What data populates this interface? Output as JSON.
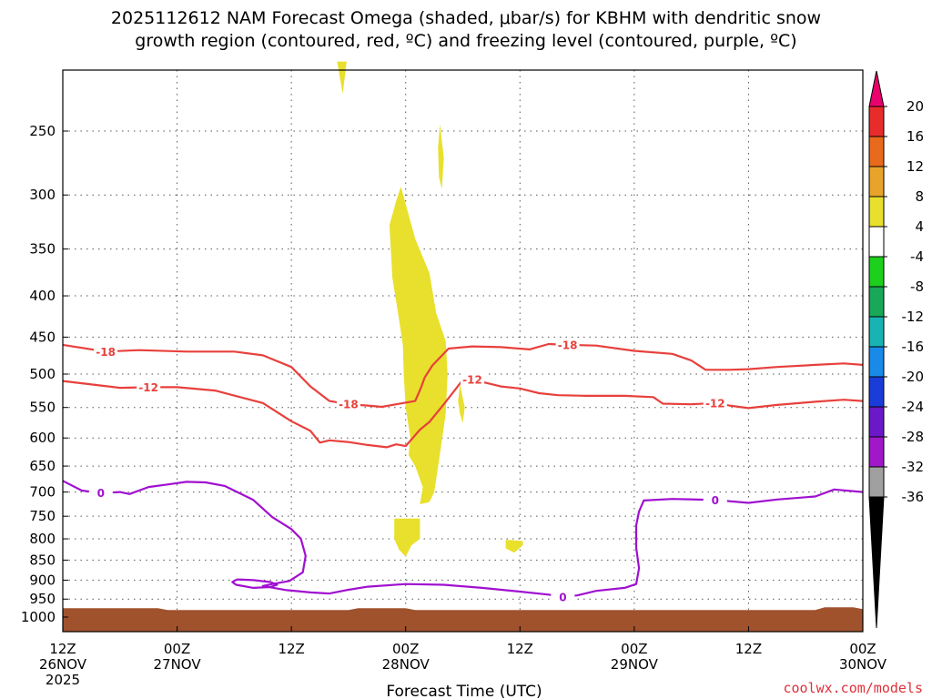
{
  "chart_data": {
    "type": "heatmap",
    "title_line1": "2025112612 NAM Forecast Omega (shaded, μbar/s) for KBHM with dendritic snow",
    "title_line2": "growth region (contoured, red, ºC) and freezing level (contoured, purple, ºC)",
    "xlabel": "Forecast Time (UTC)",
    "credit": "coolwx.com/models",
    "y_axis": {
      "unit": "hPa",
      "ticks": [
        "250",
        "300",
        "350",
        "400",
        "450",
        "500",
        "550",
        "600",
        "650",
        "700",
        "750",
        "800",
        "850",
        "900",
        "950",
        "1000"
      ],
      "range": [
        200,
        1000
      ]
    },
    "x_axis": {
      "range_hours": [
        0,
        84
      ],
      "ticks": [
        {
          "hour": 0,
          "l1": "12Z",
          "l2": "26NOV",
          "l3": "2025"
        },
        {
          "hour": 12,
          "l1": "00Z",
          "l2": "27NOV",
          "l3": ""
        },
        {
          "hour": 24,
          "l1": "12Z",
          "l2": "",
          "l3": ""
        },
        {
          "hour": 36,
          "l1": "00Z",
          "l2": "28NOV",
          "l3": ""
        },
        {
          "hour": 48,
          "l1": "12Z",
          "l2": "",
          "l3": ""
        },
        {
          "hour": 60,
          "l1": "00Z",
          "l2": "29NOV",
          "l3": ""
        },
        {
          "hour": 72,
          "l1": "12Z",
          "l2": "",
          "l3": ""
        },
        {
          "hour": 84,
          "l1": "00Z",
          "l2": "30NOV",
          "l3": ""
        }
      ]
    },
    "colorbar": {
      "labels": [
        "20",
        "16",
        "12",
        "8",
        "4",
        "-4",
        "-8",
        "-12",
        "-16",
        "-20",
        "-24",
        "-28",
        "-32",
        "-36"
      ],
      "colors": [
        "#e8006c",
        "#e82c2c",
        "#e86a1c",
        "#e8a42a",
        "#e8e02c",
        "#ffffff",
        "#1cd01c",
        "#18a858",
        "#18b4b4",
        "#1a8ae8",
        "#1a3cd8",
        "#6a18c8",
        "#a018c8",
        "#a0a0a0",
        "#000000"
      ]
    },
    "contours": [
      {
        "name": "minus18",
        "label": "-18",
        "color": "#e8403c",
        "points": [
          [
            0,
            460
          ],
          [
            4.5,
            469
          ],
          [
            8,
            467
          ],
          [
            13,
            469
          ],
          [
            18,
            469
          ],
          [
            21,
            474
          ],
          [
            24,
            490
          ],
          [
            26,
            518
          ],
          [
            28,
            540
          ],
          [
            30,
            545
          ],
          [
            32,
            547
          ],
          [
            33.5,
            549
          ],
          [
            35,
            545
          ],
          [
            37,
            540
          ],
          [
            37.6,
            520
          ],
          [
            38,
            505
          ],
          [
            38.8,
            488
          ],
          [
            40.5,
            465
          ],
          [
            43,
            462
          ],
          [
            46,
            463
          ],
          [
            49,
            466
          ],
          [
            51,
            459
          ],
          [
            53,
            460
          ],
          [
            56,
            461
          ],
          [
            60,
            468
          ],
          [
            64,
            472
          ],
          [
            66,
            481
          ],
          [
            67.5,
            494
          ],
          [
            70,
            494
          ],
          [
            72,
            493
          ],
          [
            75,
            490
          ],
          [
            79,
            487
          ],
          [
            82,
            485
          ],
          [
            84,
            487
          ]
        ],
        "labels": [
          [
            4.5,
            -18
          ],
          [
            31,
            -18
          ],
          [
            52.5,
            -18
          ]
        ]
      },
      {
        "name": "minus12",
        "label": "-12",
        "color": "#e8403c",
        "points": [
          [
            0,
            510
          ],
          [
            3,
            515
          ],
          [
            6,
            520
          ],
          [
            9,
            519
          ],
          [
            12,
            519
          ],
          [
            16,
            524
          ],
          [
            21,
            543
          ],
          [
            24,
            572
          ],
          [
            26,
            588
          ],
          [
            27,
            608
          ],
          [
            28,
            604
          ],
          [
            30,
            607
          ],
          [
            32,
            612
          ],
          [
            34,
            616
          ],
          [
            35,
            611
          ],
          [
            36,
            614
          ],
          [
            37.5,
            586
          ],
          [
            38.5,
            573
          ],
          [
            40,
            545
          ],
          [
            41.8,
            512
          ],
          [
            43,
            508
          ],
          [
            46,
            518
          ],
          [
            48,
            521
          ],
          [
            50,
            528
          ],
          [
            52,
            531
          ],
          [
            55,
            532
          ],
          [
            59,
            532
          ],
          [
            62,
            534
          ],
          [
            63,
            544
          ],
          [
            66,
            545
          ],
          [
            68.5,
            543
          ],
          [
            70,
            547
          ],
          [
            72,
            551
          ],
          [
            75,
            546
          ],
          [
            79,
            541
          ],
          [
            82,
            538
          ],
          [
            84,
            540
          ]
        ],
        "labels": [
          [
            10.5,
            -12
          ],
          [
            43,
            -12
          ],
          [
            68.5,
            -12
          ]
        ]
      },
      {
        "name": "zero",
        "label": "0",
        "color": "#a010d0",
        "points": [
          [
            0,
            678
          ],
          [
            2,
            697
          ],
          [
            4,
            702
          ],
          [
            6,
            700
          ],
          [
            7,
            704
          ],
          [
            9,
            690
          ],
          [
            11,
            685
          ],
          [
            13,
            680
          ],
          [
            15,
            681
          ],
          [
            17,
            688
          ],
          [
            20,
            716
          ],
          [
            22,
            752
          ],
          [
            24,
            778
          ],
          [
            25,
            800
          ],
          [
            25.5,
            840
          ],
          [
            25.2,
            880
          ],
          [
            23.8,
            902
          ],
          [
            22,
            910
          ],
          [
            21,
            915
          ],
          [
            23.5,
            926
          ],
          [
            26,
            932
          ],
          [
            28,
            935
          ],
          [
            30,
            925
          ],
          [
            32,
            917
          ],
          [
            36,
            910
          ],
          [
            40,
            912
          ],
          [
            44,
            920
          ],
          [
            48,
            930
          ],
          [
            51,
            938
          ],
          [
            52.5,
            944
          ],
          [
            54,
            940
          ],
          [
            56,
            928
          ],
          [
            59,
            920
          ],
          [
            60.2,
            910
          ],
          [
            60.5,
            870
          ],
          [
            60.2,
            820
          ],
          [
            60.2,
            770
          ],
          [
            60.5,
            740
          ],
          [
            61,
            717
          ],
          [
            64,
            714
          ],
          [
            68.5,
            716
          ],
          [
            72,
            722
          ],
          [
            75,
            715
          ],
          [
            79,
            709
          ],
          [
            81,
            695
          ],
          [
            84,
            700
          ]
        ],
        "labels": [
          [
            4,
            0
          ],
          [
            52.5,
            0
          ],
          [
            67.5,
            0
          ]
        ]
      },
      {
        "name": "zero-blob",
        "label": "",
        "color": "#a010d0",
        "points": [
          [
            18.3,
            898
          ],
          [
            17.8,
            905
          ],
          [
            18.2,
            912
          ],
          [
            20,
            920
          ],
          [
            21.8,
            918
          ],
          [
            22.5,
            912
          ],
          [
            21.8,
            905
          ],
          [
            20,
            900
          ],
          [
            18.3,
            898
          ]
        ],
        "labels": []
      }
    ],
    "shaded": [
      {
        "name": "omega-plume-main",
        "color": "#e8e02c",
        "points": [
          [
            34.3,
            327
          ],
          [
            35,
            305
          ],
          [
            35.5,
            293
          ],
          [
            37,
            340
          ],
          [
            38.5,
            375
          ],
          [
            39.2,
            420
          ],
          [
            40.2,
            455
          ],
          [
            40.4,
            500
          ],
          [
            40.2,
            560
          ],
          [
            39.5,
            640
          ],
          [
            39,
            700
          ],
          [
            38.5,
            720
          ],
          [
            37.5,
            725
          ],
          [
            37.8,
            690
          ],
          [
            37,
            650
          ],
          [
            36.3,
            630
          ],
          [
            36.5,
            600
          ],
          [
            36,
            550
          ],
          [
            35.8,
            500
          ],
          [
            35.7,
            460
          ],
          [
            35.2,
            420
          ],
          [
            34.6,
            380
          ],
          [
            34.3,
            327
          ]
        ]
      },
      {
        "name": "omega-top-strip",
        "color": "#e8e02c",
        "points": [
          [
            28.8,
            205
          ],
          [
            29.8,
            205
          ],
          [
            29.4,
            225
          ],
          [
            28.8,
            205
          ]
        ]
      },
      {
        "name": "omega-thin-strip",
        "color": "#e8e02c",
        "points": [
          [
            39.6,
            245
          ],
          [
            40,
            270
          ],
          [
            39.8,
            295
          ],
          [
            39.5,
            285
          ],
          [
            39.4,
            262
          ],
          [
            39.6,
            245
          ]
        ]
      },
      {
        "name": "omega-low-blob",
        "color": "#e8e02c",
        "points": [
          [
            34.8,
            755
          ],
          [
            37.5,
            755
          ],
          [
            37.5,
            800
          ],
          [
            36.6,
            815
          ],
          [
            36,
            842
          ],
          [
            35.3,
            825
          ],
          [
            34.8,
            800
          ],
          [
            34.8,
            755
          ]
        ]
      },
      {
        "name": "omega-small-blob",
        "color": "#e8e02c",
        "points": [
          [
            46.5,
            802
          ],
          [
            48.3,
            805
          ],
          [
            48.3,
            815
          ],
          [
            47.4,
            832
          ],
          [
            46.5,
            822
          ],
          [
            46.5,
            802
          ]
        ]
      },
      {
        "name": "omega-sliver",
        "color": "#e8e02c",
        "points": [
          [
            41.7,
            515
          ],
          [
            42.2,
            550
          ],
          [
            42.0,
            575
          ],
          [
            41.7,
            560
          ],
          [
            41.5,
            540
          ],
          [
            41.7,
            515
          ]
        ]
      }
    ],
    "terrain": {
      "color": "#a0522d",
      "top_hpa": 975
    }
  }
}
